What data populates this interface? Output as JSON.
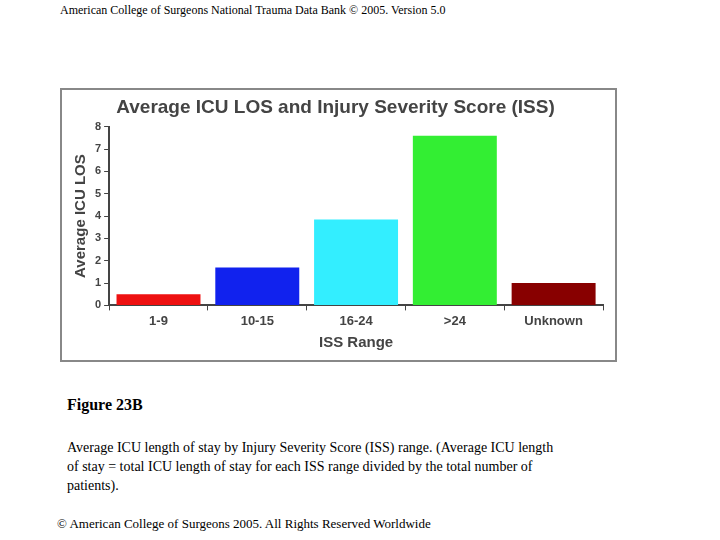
{
  "header": "American College of Surgeons National Trauma Data Bank © 2005. Version 5.0",
  "chart_data": {
    "type": "bar",
    "title": "Average ICU LOS and Injury Severity Score (ISS)",
    "x_label": "ISS Range",
    "y_label": "Average ICU LOS",
    "categories": [
      "1-9",
      "10-15",
      "16-24",
      ">24",
      "Unknown"
    ],
    "values": [
      0.5,
      1.7,
      3.85,
      7.6,
      1.0
    ],
    "colors": [
      "#ee1111",
      "#1122ee",
      "#33eeff",
      "#33ee33",
      "#880000"
    ],
    "ylim": [
      0,
      8
    ],
    "yticks": [
      0,
      1,
      2,
      3,
      4,
      5,
      6,
      7,
      8
    ],
    "grid": false
  },
  "figure_label": "Figure 23B",
  "caption": "Average ICU length of stay by Injury Severity Score (ISS) range. (Average ICU length of stay = total ICU length of stay for each ISS range divided by the total number of patients).",
  "footer": "© American College of Surgeons 2005. All Rights Reserved Worldwide"
}
